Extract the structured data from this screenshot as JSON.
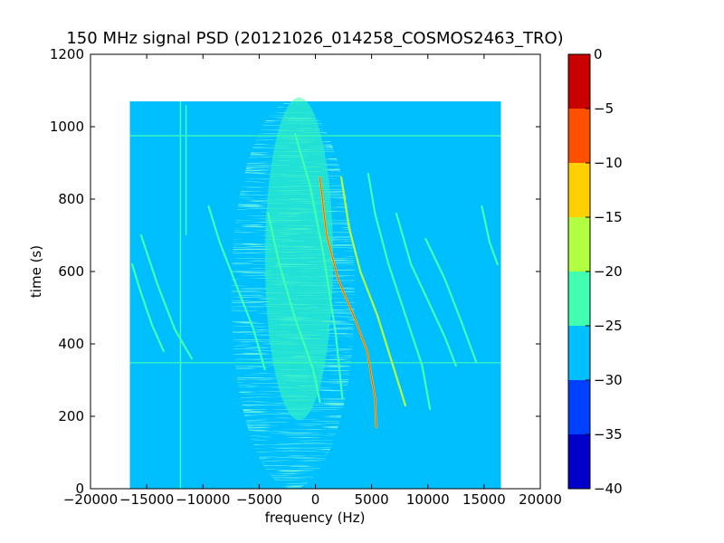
{
  "chart_data": {
    "type": "heatmap",
    "title": "150 MHz signal PSD (20121026_014258_COSMOS2463_TRO)",
    "xlabel": "frequency (Hz)",
    "ylabel": "time (s)",
    "xlim": [
      -20000,
      20000
    ],
    "ylim": [
      0,
      1200
    ],
    "xticks": [
      -20000,
      -15000,
      -10000,
      -5000,
      0,
      5000,
      10000,
      15000,
      20000
    ],
    "xtick_labels": [
      "−20000",
      "−15000",
      "−10000",
      "−5000",
      "0",
      "5000",
      "10000",
      "15000",
      "20000"
    ],
    "yticks": [
      0,
      200,
      400,
      600,
      800,
      1000,
      1200
    ],
    "ytick_labels": [
      "0",
      "200",
      "400",
      "600",
      "800",
      "1000",
      "1200"
    ],
    "data_extent": {
      "freq": [
        -16500,
        16500
      ],
      "time": [
        0,
        1070
      ]
    },
    "background_level": -27.5,
    "noise_hump": {
      "center_freq": -2000,
      "width_hz": 5500,
      "level": -22.5
    },
    "horizontal_lines": [
      {
        "time": 975,
        "level": -22.5
      },
      {
        "time": 348,
        "level": -22.5
      }
    ],
    "vertical_lines": [
      {
        "freq": -12000,
        "t_range": [
          0,
          1070
        ],
        "level": -22.5
      },
      {
        "freq": -11500,
        "t_range": [
          700,
          1060
        ],
        "level": -22.5
      }
    ],
    "tracks": [
      {
        "points": [
          [
            400,
            860
          ],
          [
            1000,
            700
          ],
          [
            2000,
            580
          ],
          [
            3500,
            470
          ],
          [
            4600,
            380
          ],
          [
            5300,
            250
          ],
          [
            5400,
            170
          ]
        ],
        "level": -12.5,
        "core_level": -7.5
      },
      {
        "points": [
          [
            2300,
            860
          ],
          [
            3000,
            720
          ],
          [
            4000,
            600
          ],
          [
            5500,
            480
          ],
          [
            6800,
            350
          ],
          [
            8000,
            230
          ]
        ],
        "level": -17.5
      },
      {
        "points": [
          [
            4700,
            870
          ],
          [
            5300,
            760
          ],
          [
            6500,
            620
          ],
          [
            8000,
            480
          ],
          [
            9500,
            340
          ],
          [
            10200,
            220
          ]
        ],
        "level": -22.5
      },
      {
        "points": [
          [
            7200,
            760
          ],
          [
            8500,
            620
          ],
          [
            10000,
            520
          ],
          [
            11500,
            420
          ],
          [
            12500,
            340
          ]
        ],
        "level": -22.5
      },
      {
        "points": [
          [
            9800,
            690
          ],
          [
            11500,
            580
          ],
          [
            13000,
            460
          ],
          [
            14300,
            350
          ]
        ],
        "level": -22.5
      },
      {
        "points": [
          [
            -1800,
            980
          ],
          [
            -500,
            840
          ],
          [
            700,
            650
          ],
          [
            1800,
            430
          ],
          [
            2400,
            250
          ]
        ],
        "level": -22.5
      },
      {
        "points": [
          [
            -4200,
            760
          ],
          [
            -3200,
            620
          ],
          [
            -1800,
            470
          ],
          [
            -200,
            330
          ],
          [
            400,
            240
          ]
        ],
        "level": -22.5
      },
      {
        "points": [
          [
            -9500,
            780
          ],
          [
            -8500,
            680
          ],
          [
            -7000,
            560
          ],
          [
            -5500,
            440
          ],
          [
            -4500,
            330
          ]
        ],
        "level": -22.5
      },
      {
        "points": [
          [
            -16300,
            620
          ],
          [
            -15500,
            540
          ],
          [
            -14500,
            450
          ],
          [
            -13500,
            380
          ]
        ],
        "level": -22.5
      },
      {
        "points": [
          [
            -15500,
            700
          ],
          [
            -14000,
            560
          ],
          [
            -12500,
            440
          ],
          [
            -11000,
            360
          ]
        ],
        "level": -22.5
      },
      {
        "points": [
          [
            14800,
            780
          ],
          [
            15500,
            680
          ],
          [
            16200,
            620
          ]
        ],
        "level": -22.5
      }
    ],
    "colorbar": {
      "range": [
        -40,
        0
      ],
      "ticks": [
        0,
        -5,
        -10,
        -15,
        -20,
        -25,
        -30,
        -35,
        -40
      ],
      "tick_labels": [
        "0",
        "−5",
        "−10",
        "−15",
        "−20",
        "−25",
        "−30",
        "−35",
        "−40"
      ],
      "colors": [
        "#0000c8",
        "#0040ff",
        "#00bfff",
        "#40ffb0",
        "#b0ff40",
        "#ffd000",
        "#ff5000",
        "#c80000"
      ]
    }
  }
}
